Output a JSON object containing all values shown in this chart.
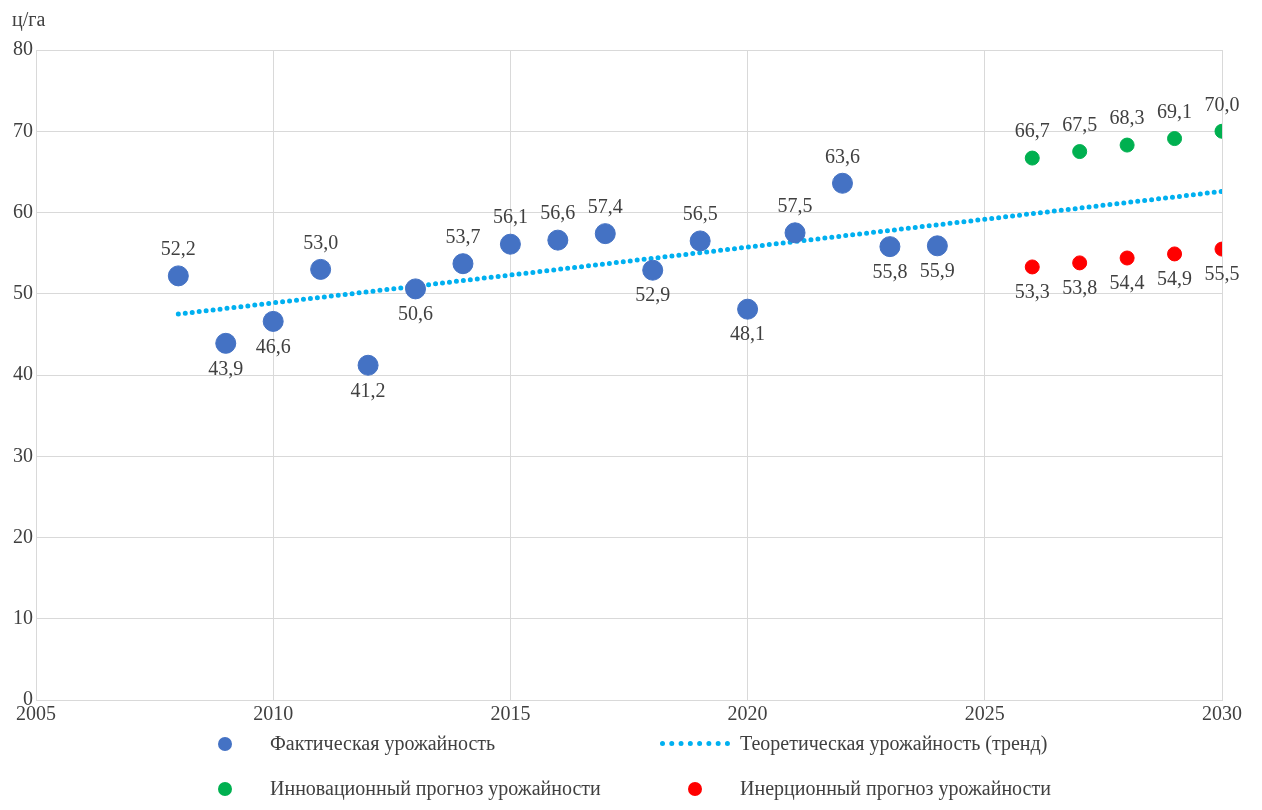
{
  "chart_data": {
    "type": "scatter",
    "ylabel": "ц/га",
    "xlim": [
      2005,
      2030
    ],
    "xticks": [
      2005,
      2010,
      2015,
      2020,
      2025,
      2030
    ],
    "ylim": [
      0,
      80
    ],
    "yticks": [
      0,
      10,
      20,
      30,
      40,
      50,
      60,
      70,
      80
    ],
    "grid": true,
    "legend": "bottom",
    "marker": "circle",
    "series": [
      {
        "name": "Фактическая урожайность",
        "type": "scatter",
        "color": "#4472c4",
        "x": [
          2008,
          2009,
          2010,
          2011,
          2012,
          2013,
          2014,
          2015,
          2016,
          2017,
          2018,
          2019,
          2020,
          2021,
          2022,
          2023,
          2024
        ],
        "values": [
          52.2,
          43.9,
          46.6,
          53.0,
          41.2,
          50.6,
          53.7,
          56.1,
          56.6,
          57.4,
          52.9,
          56.5,
          48.1,
          57.5,
          63.6,
          55.8,
          55.9
        ],
        "value_labels": [
          "52,2",
          "43,9",
          "46,6",
          "53,0",
          "41,2",
          "50,6",
          "53,7",
          "56,1",
          "56,6",
          "57,4",
          "52,9",
          "56,5",
          "48,1",
          "57,5",
          "63,6",
          "55,8",
          "55,9"
        ]
      },
      {
        "name": "Теоретическая урожайность (тренд)",
        "type": "line",
        "color": "#00b0f0",
        "line_style": "dotted",
        "marker": "none",
        "x": [
          2008,
          2030
        ],
        "values": [
          47.5,
          62.6
        ]
      },
      {
        "name": "Инновационный прогноз урожайности",
        "type": "scatter",
        "color": "#00b050",
        "x": [
          2026,
          2027,
          2028,
          2029,
          2030
        ],
        "values": [
          66.7,
          67.5,
          68.3,
          69.1,
          70.0
        ],
        "value_labels": [
          "66,7",
          "67,5",
          "68,3",
          "69,1",
          "70,0"
        ]
      },
      {
        "name": "Инерционный прогноз урожайности",
        "type": "scatter",
        "color": "#ff0000",
        "x": [
          2026,
          2027,
          2028,
          2029,
          2030
        ],
        "values": [
          53.3,
          53.8,
          54.4,
          54.9,
          55.5
        ],
        "value_labels": [
          "53,3",
          "53,8",
          "54,4",
          "54,9",
          "55,5"
        ]
      }
    ]
  }
}
